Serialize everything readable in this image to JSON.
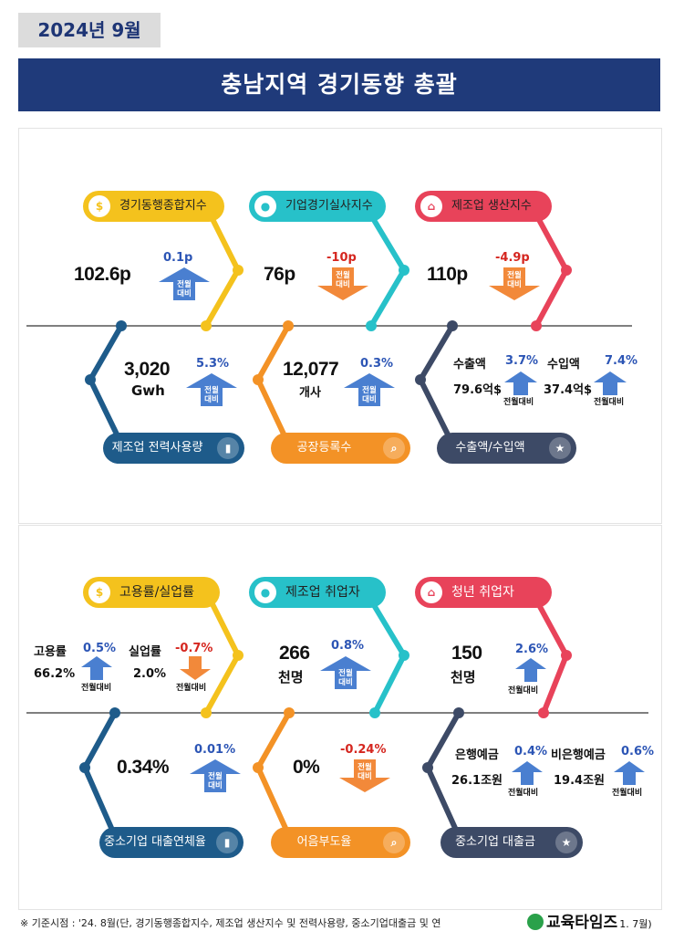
{
  "header": {
    "date": "2024년  9월",
    "title": "충남지역  경기동향  총괄"
  },
  "panel1": {
    "top": [
      {
        "label": "경기동행종합지수",
        "value": "102.6p",
        "change": "0.1p",
        "sub": "전월\n대비"
      },
      {
        "label": "기업경기실사지수",
        "value": "76p",
        "change": "-10p",
        "sub": "전월\n대비"
      },
      {
        "label": "제조업 생산지수",
        "value": "110p",
        "change": "-4.9p",
        "sub": "전월\n대비"
      }
    ],
    "bottom": [
      {
        "label": "제조업 전력사용량",
        "value": "3,020",
        "unit": "Gwh",
        "change": "5.3%",
        "sub": "전월\n대비"
      },
      {
        "label": "공장등록수",
        "value": "12,077",
        "unit": "개사",
        "change": "0.3%",
        "sub": "전월\n대비"
      },
      {
        "label": "수출액/수입액",
        "export_label": "수출액",
        "export_value": "79.6억$",
        "export_change": "3.7%",
        "import_label": "수입액",
        "import_value": "37.4억$",
        "import_change": "7.4%",
        "sub": "전월대비"
      }
    ]
  },
  "panel2": {
    "top": [
      {
        "label": "고용률/실업률",
        "emp_label": "고용률",
        "emp_value": "66.2%",
        "emp_change": "0.5%",
        "unemp_label": "실업률",
        "unemp_value": "2.0%",
        "unemp_change": "-0.7%",
        "sub": "전월대비"
      },
      {
        "label": "제조업 취업자",
        "value": "266",
        "unit": "천명",
        "change": "0.8%",
        "sub": "전월\n대비"
      },
      {
        "label": "청년 취업자",
        "value": "150",
        "unit": "천명",
        "change": "2.6%",
        "sub": "전월대비"
      }
    ],
    "bottom": [
      {
        "label": "중소기업 대출연체율",
        "value": "0.34%",
        "change": "0.01%",
        "sub": "전월\n대비"
      },
      {
        "label": "어음부도율",
        "value": "0%",
        "change": "-0.24%",
        "sub": "전월\n대비"
      },
      {
        "label": "중소기업 대출금",
        "dep_label": "은행예금",
        "dep_value": "26.1조원",
        "dep_change": "0.4%",
        "nbank_label": "비은행예금",
        "nbank_value": "19.4조원",
        "nbank_change": "0.6%",
        "sub": "전월대비"
      }
    ]
  },
  "footnote": "※ 기준시점 : '24. 8월(단, 경기동행종합지수, 제조업 생산지수 및 전력사용량, 중소기업대출금 및 연",
  "footnote_end": "1. 7월)",
  "logo": "교육타임즈",
  "colors": {
    "yellow": "#f4c21d",
    "teal": "#27c1c9",
    "red": "#e8435a",
    "navy": "#1f3a7a",
    "blue_dark": "#1e5b8a",
    "orange": "#f39226",
    "slate": "#3d4a66",
    "up_arrow": "#4a7fd0",
    "down_arrow": "#f2893a"
  }
}
